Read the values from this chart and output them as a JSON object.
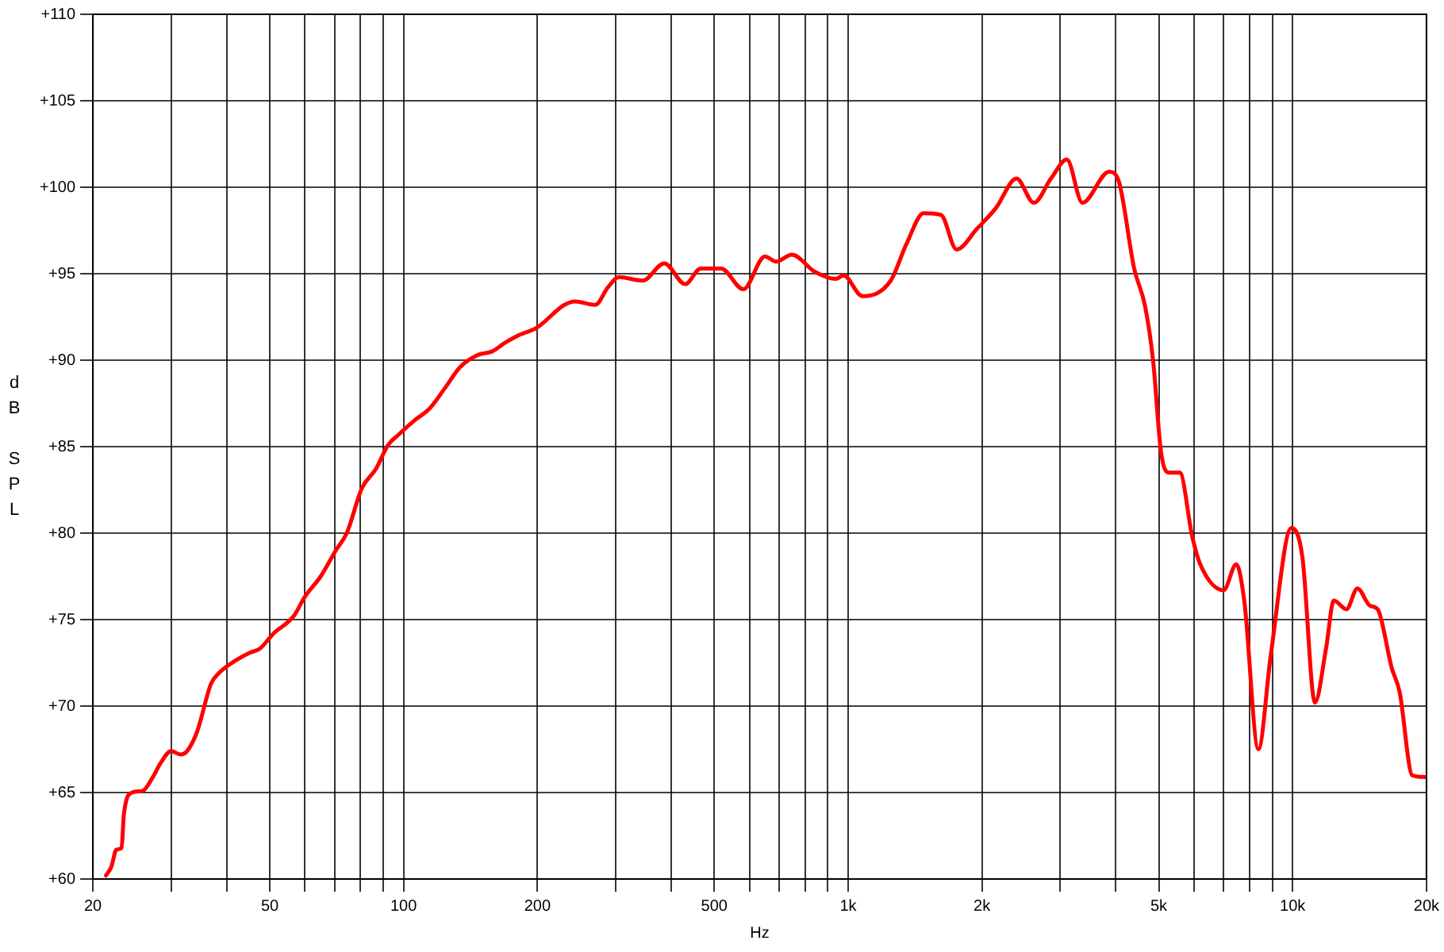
{
  "chart_data": {
    "type": "line",
    "xlabel": "Hz",
    "ylabel": "dB SPL",
    "log": "x",
    "grid": true,
    "legend": false,
    "marker": "none",
    "line_style": "solid",
    "xlim": [
      20,
      20000
    ],
    "ylim": [
      60,
      110
    ],
    "xticks": [
      20,
      {
        "value": 30,
        "label": null
      },
      {
        "value": 40,
        "label": null
      },
      50,
      {
        "value": 60,
        "label": null
      },
      {
        "value": 70,
        "label": null
      },
      {
        "value": 80,
        "label": null
      },
      {
        "value": 90,
        "label": null
      },
      100,
      200,
      {
        "value": 300,
        "label": null
      },
      {
        "value": 400,
        "label": null
      },
      500,
      {
        "value": 600,
        "label": null
      },
      {
        "value": 700,
        "label": null
      },
      {
        "value": 800,
        "label": null
      },
      {
        "value": 900,
        "label": null
      },
      {
        "value": 1000,
        "label": "1k"
      },
      {
        "value": 2000,
        "label": "2k"
      },
      {
        "value": 3000,
        "label": null
      },
      {
        "value": 4000,
        "label": null
      },
      {
        "value": 5000,
        "label": "5k"
      },
      {
        "value": 6000,
        "label": null
      },
      {
        "value": 7000,
        "label": null
      },
      {
        "value": 8000,
        "label": null
      },
      {
        "value": 9000,
        "label": null
      },
      {
        "value": 10000,
        "label": "10k"
      },
      {
        "value": 20000,
        "label": "20k"
      }
    ],
    "yticks": [
      {
        "value": 60,
        "label": "+60"
      },
      {
        "value": 65,
        "label": "+65"
      },
      {
        "value": 70,
        "label": "+70"
      },
      {
        "value": 75,
        "label": "+75"
      },
      {
        "value": 80,
        "label": "+80"
      },
      {
        "value": 85,
        "label": "+85"
      },
      {
        "value": 90,
        "label": "+90"
      },
      {
        "value": 95,
        "label": "+95"
      },
      {
        "value": 100,
        "label": "+100"
      },
      {
        "value": 105,
        "label": "+105"
      },
      {
        "value": 110,
        "label": "+110"
      }
    ],
    "series": [
      {
        "color": "#ff0000",
        "x": [
          21.4,
          22,
          22.6,
          23.2,
          23.5,
          24.5,
          25.9,
          27.3,
          28.4,
          30,
          31.5,
          32.6,
          34.3,
          36.9,
          38.4,
          42.3,
          45.2,
          47.4,
          51,
          56.6,
          59.9,
          65.1,
          70.4,
          74.5,
          80.6,
          86.6,
          92.3,
          97.5,
          105.6,
          114.4,
          124,
          134,
          146.8,
          158,
          169,
          180,
          200,
          230,
          243,
          270,
          288,
          305,
          345,
          386,
          430,
          466,
          518,
          581,
          650,
          689,
          747,
          843,
          938,
          977,
          1077,
          1247,
          1352,
          1479,
          1618,
          1754,
          1950,
          2151,
          2392,
          2618,
          2860,
          3105,
          3366,
          3865,
          4057,
          4401,
          4659,
          4853,
          5057,
          5264,
          5573,
          5945,
          6196,
          6996,
          7468,
          7783,
          8374,
          8934,
          9935,
          10520,
          11227,
          11885,
          12380,
          13212,
          13990,
          14930,
          15530,
          16710,
          17410,
          18580,
          19820
        ],
        "values": [
          60.2,
          60.7,
          61.7,
          61.8,
          63.8,
          65,
          65.1,
          65.9,
          66.7,
          67.4,
          67.2,
          67.4,
          68.5,
          71.3,
          71.9,
          72.7,
          73.1,
          73.3,
          74.2,
          75.2,
          76.3,
          77.5,
          79,
          80,
          82.6,
          83.7,
          85.1,
          85.7,
          86.5,
          87.2,
          88.4,
          89.6,
          90.3,
          90.5,
          91,
          91.4,
          91.9,
          93.2,
          93.4,
          93.2,
          94.2,
          94.8,
          94.6,
          95.6,
          94.4,
          95.3,
          95.3,
          94.1,
          96,
          95.7,
          96.1,
          95.1,
          94.7,
          94.9,
          93.7,
          94.6,
          96.7,
          98.5,
          98.4,
          96.4,
          97.6,
          98.8,
          100.5,
          99.1,
          100.5,
          101.6,
          99.1,
          100.9,
          100.4,
          95.3,
          93.1,
          90,
          84.7,
          83.5,
          83.5,
          79.8,
          78.2,
          76.7,
          78.2,
          76.1,
          67.5,
          73,
          80.3,
          78.6,
          70.2,
          73.3,
          76.1,
          75.6,
          76.8,
          75.8,
          75.6,
          72.2,
          70.8,
          66,
          65.9
        ]
      }
    ]
  }
}
